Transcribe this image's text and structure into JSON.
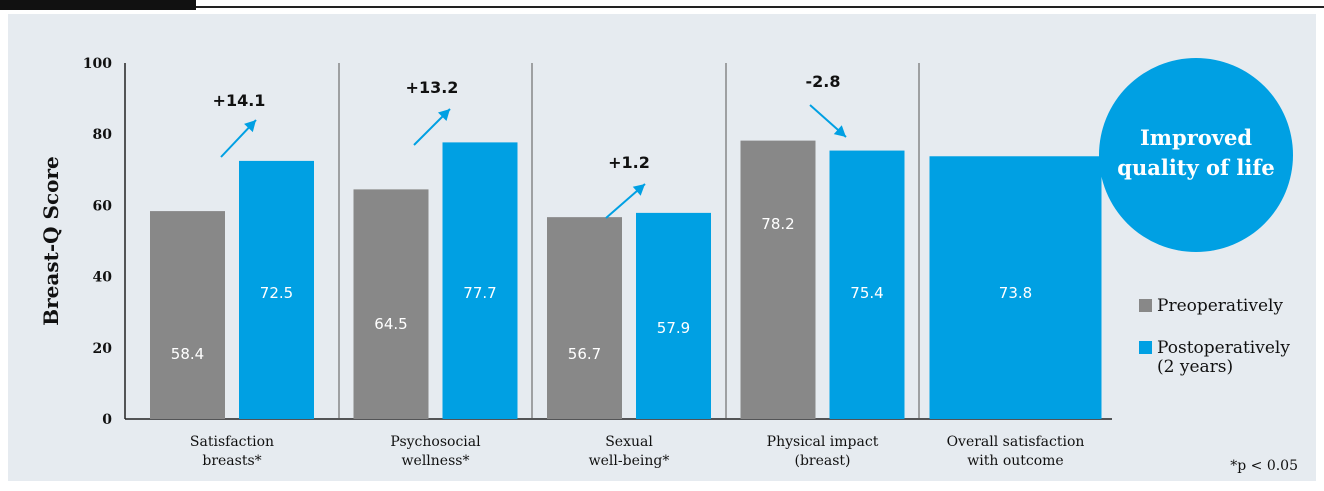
{
  "chart_data": {
    "type": "bar",
    "ylabel": "Breast-Q Score",
    "ylim": [
      0,
      100
    ],
    "yticks": [
      "0",
      "20",
      "40",
      "60",
      "80",
      "100"
    ],
    "categories": [
      [
        "Satisfaction",
        "breasts*"
      ],
      [
        "Psychosocial",
        "wellness*"
      ],
      [
        "Sexual",
        "well-being*"
      ],
      [
        "Physical impact",
        "(breast)"
      ],
      [
        "Overall satisfaction",
        "with outcome"
      ]
    ],
    "series": [
      {
        "name": "Preoperatively",
        "color": "#888888",
        "values": [
          58.4,
          64.5,
          56.7,
          78.2,
          null
        ]
      },
      {
        "name": "Postoperatively",
        "color": "#00a0e3",
        "values": [
          72.5,
          77.7,
          57.9,
          75.4,
          73.8
        ]
      }
    ],
    "value_labels": [
      [
        "58.4",
        "64.5",
        "56.7",
        "78.2",
        ""
      ],
      [
        "72.5",
        "77.7",
        "57.9",
        "75.4",
        "73.8"
      ]
    ],
    "changes": [
      "+14.1",
      "+13.2",
      "+1.2",
      "-2.8"
    ],
    "legend": [
      {
        "lines": [
          "Preoperatively"
        ],
        "color": "#888888"
      },
      {
        "lines": [
          "Postoperatively",
          "(2 years)"
        ],
        "color": "#00a0e3"
      }
    ],
    "highlight_lines": [
      "Improved",
      "quality of life"
    ],
    "highlight_color": "#00a0e3",
    "footnote": "*p < 0.05",
    "grid": false
  }
}
